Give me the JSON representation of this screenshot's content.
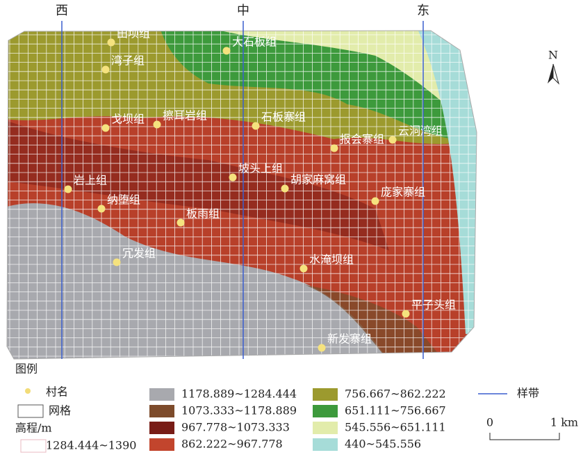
{
  "transects": [
    "西",
    "中",
    "东"
  ],
  "north": "N",
  "villages": [
    "田坝组",
    "湾子组",
    "大石板组",
    "戈坝组",
    "擦耳岩组",
    "石板寨组",
    "报会寨组",
    "云洞湾组",
    "岩上组",
    "坡头上组",
    "胡家麻窝组",
    "庞家寨组",
    "纳堕组",
    "板雨组",
    "冗发组",
    "水淹坝组",
    "平子头组",
    "新发寨组"
  ],
  "legend": {
    "title": "图例",
    "village": "村名",
    "grid": "网格",
    "elevation_title": "高程/m",
    "elevation": [
      {
        "label": "1284.444~1390",
        "color": "#ffffff"
      },
      {
        "label": "1178.889~1284.444",
        "color": "#a8a9ae"
      },
      {
        "label": "1073.333~1178.889",
        "color": "#7d4b2b"
      },
      {
        "label": "967.778~1073.333",
        "color": "#781c16"
      },
      {
        "label": "862.222~967.778",
        "color": "#c2452d"
      },
      {
        "label": "756.667~862.222",
        "color": "#9c9a2e"
      },
      {
        "label": "651.111~756.667",
        "color": "#3d9a3c"
      },
      {
        "label": "545.556~651.111",
        "color": "#e2ecab"
      },
      {
        "label": "440~545.556",
        "color": "#a6dcd8"
      }
    ],
    "transect": "样带"
  },
  "scale": {
    "start": "0",
    "end": "1 km"
  }
}
